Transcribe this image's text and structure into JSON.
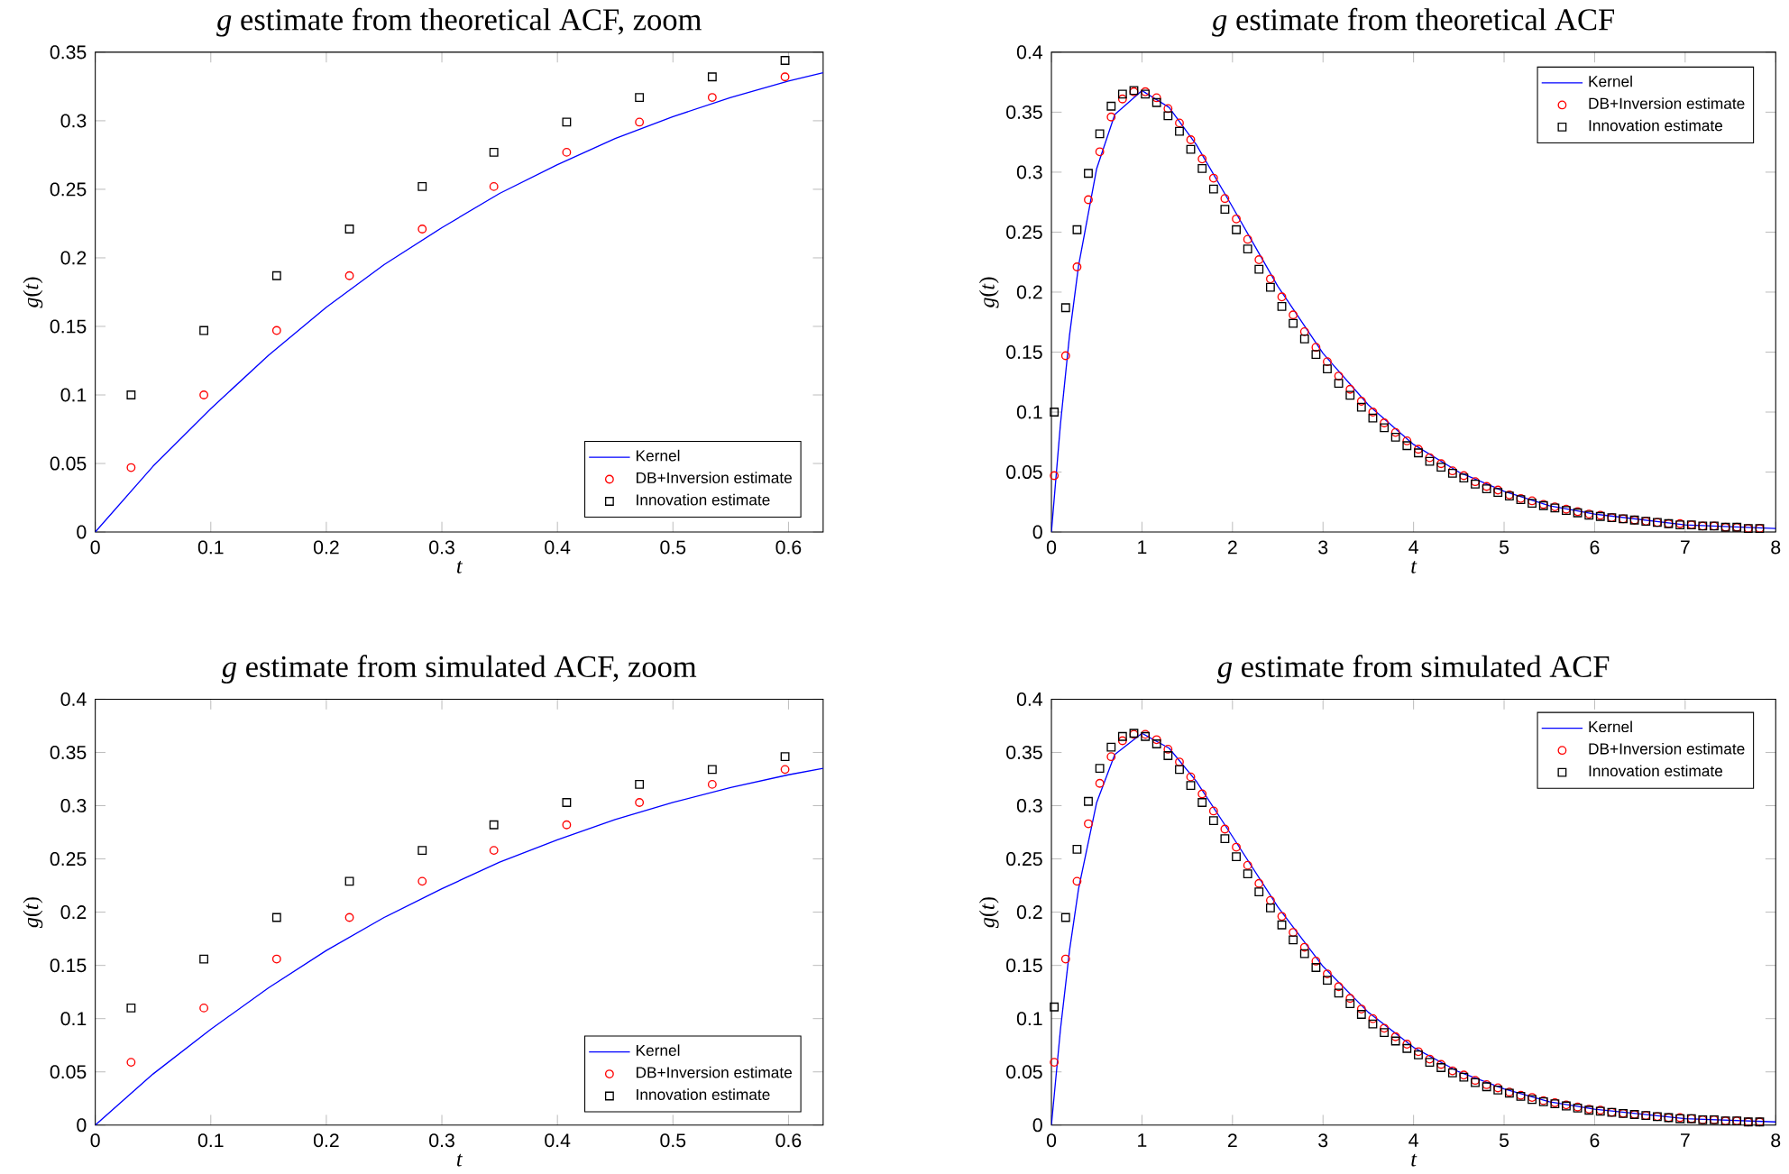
{
  "chart_data": [
    {
      "type": "scatter",
      "title": "*g* estimate from theoretical ACF, zoom",
      "xlabel": "t",
      "ylabel": "*g*(*t*)",
      "xlim": [
        0,
        0.63
      ],
      "ylim": [
        0,
        0.35
      ],
      "xticks": [
        0,
        0.1,
        0.2,
        0.3,
        0.4,
        0.5,
        0.6
      ],
      "yticks": [
        0,
        0.05,
        0.1,
        0.15,
        0.2,
        0.25,
        0.3,
        0.35
      ],
      "legend": "bottom right",
      "x": [
        0.031,
        0.094,
        0.157,
        0.22,
        0.283,
        0.345,
        0.408,
        0.471,
        0.534,
        0.597
      ],
      "series": [
        {
          "name": "Kernel",
          "type": "line",
          "marker": "none",
          "color": "#0000ff",
          "x": [
            0,
            0.05,
            0.1,
            0.15,
            0.2,
            0.25,
            0.3,
            0.35,
            0.4,
            0.45,
            0.5,
            0.55,
            0.6,
            0.63
          ],
          "values": [
            0,
            0.048,
            0.09,
            0.129,
            0.164,
            0.195,
            0.222,
            0.247,
            0.268,
            0.287,
            0.303,
            0.317,
            0.329,
            0.335
          ]
        },
        {
          "name": "DB+Inversion estimate",
          "marker": "circle",
          "color": "#ff0000",
          "values": [
            0.047,
            0.1,
            0.147,
            0.187,
            0.221,
            0.252,
            0.277,
            0.299,
            0.317,
            0.332
          ]
        },
        {
          "name": "Innovation estimate",
          "marker": "square",
          "color": "#000000",
          "values": [
            0.1,
            0.147,
            0.187,
            0.221,
            0.252,
            0.277,
            0.299,
            0.317,
            0.332,
            0.344
          ]
        }
      ]
    },
    {
      "type": "scatter",
      "title": "*g* estimate from theoretical ACF",
      "xlabel": "t",
      "ylabel": "*g*(*t*)",
      "xlim": [
        0,
        8
      ],
      "ylim": [
        0,
        0.4
      ],
      "xticks": [
        0,
        1,
        2,
        3,
        4,
        5,
        6,
        7,
        8
      ],
      "yticks": [
        0,
        0.05,
        0.1,
        0.15,
        0.2,
        0.25,
        0.3,
        0.35,
        0.4
      ],
      "legend": "top right",
      "x": [
        0.031,
        0.157,
        0.283,
        0.408,
        0.534,
        0.66,
        0.785,
        0.911,
        1.037,
        1.162,
        1.288,
        1.414,
        1.539,
        1.665,
        1.791,
        1.916,
        2.042,
        2.168,
        2.293,
        2.419,
        2.545,
        2.67,
        2.796,
        2.922,
        3.047,
        3.173,
        3.299,
        3.424,
        3.55,
        3.676,
        3.801,
        3.927,
        4.053,
        4.178,
        4.304,
        4.43,
        4.555,
        4.681,
        4.807,
        4.932,
        5.058,
        5.184,
        5.309,
        5.435,
        5.561,
        5.686,
        5.812,
        5.938,
        6.063,
        6.189,
        6.315,
        6.44,
        6.566,
        6.692,
        6.817,
        6.943,
        7.069,
        7.194,
        7.32,
        7.446,
        7.571,
        7.697,
        7.823
      ],
      "series": [
        {
          "name": "Kernel",
          "type": "line",
          "marker": "none",
          "color": "#0000ff",
          "x": [
            0,
            0.1,
            0.2,
            0.3,
            0.5,
            0.7,
            1,
            1.3,
            1.6,
            2,
            2.5,
            3,
            3.5,
            4,
            4.5,
            5,
            5.5,
            6,
            7,
            8
          ],
          "values": [
            0,
            0.09,
            0.164,
            0.222,
            0.303,
            0.348,
            0.368,
            0.354,
            0.323,
            0.271,
            0.205,
            0.149,
            0.106,
            0.073,
            0.05,
            0.034,
            0.022,
            0.015,
            0.006,
            0.003
          ]
        },
        {
          "name": "DB+Inversion estimate",
          "marker": "circle",
          "color": "#ff0000",
          "values": [
            0.047,
            0.147,
            0.221,
            0.277,
            0.317,
            0.346,
            0.361,
            0.367,
            0.367,
            0.362,
            0.353,
            0.341,
            0.327,
            0.311,
            0.295,
            0.278,
            0.261,
            0.244,
            0.227,
            0.211,
            0.196,
            0.181,
            0.167,
            0.154,
            0.142,
            0.13,
            0.119,
            0.109,
            0.1,
            0.091,
            0.083,
            0.076,
            0.069,
            0.062,
            0.057,
            0.051,
            0.047,
            0.042,
            0.038,
            0.035,
            0.031,
            0.028,
            0.026,
            0.023,
            0.021,
            0.019,
            0.017,
            0.015,
            0.014,
            0.012,
            0.011,
            0.01,
            0.009,
            0.008,
            0.007,
            0.007,
            0.006,
            0.005,
            0.005,
            0.004,
            0.004,
            0.003,
            0.003
          ]
        },
        {
          "name": "Innovation estimate",
          "marker": "square",
          "color": "#000000",
          "values": [
            0.1,
            0.187,
            0.252,
            0.299,
            0.332,
            0.355,
            0.365,
            0.368,
            0.365,
            0.358,
            0.347,
            0.334,
            0.319,
            0.303,
            0.286,
            0.269,
            0.252,
            0.236,
            0.219,
            0.204,
            0.188,
            0.174,
            0.161,
            0.148,
            0.136,
            0.124,
            0.114,
            0.104,
            0.095,
            0.087,
            0.079,
            0.072,
            0.066,
            0.059,
            0.054,
            0.049,
            0.045,
            0.04,
            0.036,
            0.033,
            0.03,
            0.027,
            0.024,
            0.022,
            0.02,
            0.018,
            0.016,
            0.014,
            0.013,
            0.012,
            0.011,
            0.01,
            0.009,
            0.008,
            0.007,
            0.006,
            0.006,
            0.005,
            0.005,
            0.004,
            0.004,
            0.003,
            0.003
          ]
        }
      ]
    },
    {
      "type": "scatter",
      "title": "*g* estimate from simulated ACF, zoom",
      "xlabel": "t",
      "ylabel": "*g*(*t*)",
      "xlim": [
        0,
        0.63
      ],
      "ylim": [
        0,
        0.4
      ],
      "xticks": [
        0,
        0.1,
        0.2,
        0.3,
        0.4,
        0.5,
        0.6
      ],
      "yticks": [
        0,
        0.05,
        0.1,
        0.15,
        0.2,
        0.25,
        0.3,
        0.35,
        0.4
      ],
      "legend": "bottom right",
      "x": [
        0.031,
        0.094,
        0.157,
        0.22,
        0.283,
        0.345,
        0.408,
        0.471,
        0.534,
        0.597
      ],
      "series": [
        {
          "name": "Kernel",
          "type": "line",
          "marker": "none",
          "color": "#0000ff",
          "x": [
            0,
            0.05,
            0.1,
            0.15,
            0.2,
            0.25,
            0.3,
            0.35,
            0.4,
            0.45,
            0.5,
            0.55,
            0.6,
            0.63
          ],
          "values": [
            0,
            0.048,
            0.09,
            0.129,
            0.164,
            0.195,
            0.222,
            0.247,
            0.268,
            0.287,
            0.303,
            0.317,
            0.329,
            0.335
          ]
        },
        {
          "name": "DB+Inversion estimate",
          "marker": "circle",
          "color": "#ff0000",
          "values": [
            0.059,
            0.11,
            0.156,
            0.195,
            0.229,
            0.258,
            0.282,
            0.303,
            0.32,
            0.334
          ]
        },
        {
          "name": "Innovation estimate",
          "marker": "square",
          "color": "#000000",
          "values": [
            0.11,
            0.156,
            0.195,
            0.229,
            0.258,
            0.282,
            0.303,
            0.32,
            0.334,
            0.346
          ]
        }
      ]
    },
    {
      "type": "scatter",
      "title": "*g* estimate from simulated ACF",
      "xlabel": "t",
      "ylabel": "*g*(*t*)",
      "xlim": [
        0,
        8
      ],
      "ylim": [
        0,
        0.4
      ],
      "xticks": [
        0,
        1,
        2,
        3,
        4,
        5,
        6,
        7,
        8
      ],
      "yticks": [
        0,
        0.05,
        0.1,
        0.15,
        0.2,
        0.25,
        0.3,
        0.35,
        0.4
      ],
      "legend": "top right",
      "x": [
        0.031,
        0.157,
        0.283,
        0.408,
        0.534,
        0.66,
        0.785,
        0.911,
        1.037,
        1.162,
        1.288,
        1.414,
        1.539,
        1.665,
        1.791,
        1.916,
        2.042,
        2.168,
        2.293,
        2.419,
        2.545,
        2.67,
        2.796,
        2.922,
        3.047,
        3.173,
        3.299,
        3.424,
        3.55,
        3.676,
        3.801,
        3.927,
        4.053,
        4.178,
        4.304,
        4.43,
        4.555,
        4.681,
        4.807,
        4.932,
        5.058,
        5.184,
        5.309,
        5.435,
        5.561,
        5.686,
        5.812,
        5.938,
        6.063,
        6.189,
        6.315,
        6.44,
        6.566,
        6.692,
        6.817,
        6.943,
        7.069,
        7.194,
        7.32,
        7.446,
        7.571,
        7.697,
        7.823
      ],
      "series": [
        {
          "name": "Kernel",
          "type": "line",
          "marker": "none",
          "color": "#0000ff",
          "x": [
            0,
            0.1,
            0.2,
            0.3,
            0.5,
            0.7,
            1,
            1.3,
            1.6,
            2,
            2.5,
            3,
            3.5,
            4,
            4.5,
            5,
            5.5,
            6,
            7,
            8
          ],
          "values": [
            0,
            0.09,
            0.164,
            0.222,
            0.303,
            0.348,
            0.368,
            0.354,
            0.323,
            0.271,
            0.205,
            0.149,
            0.106,
            0.073,
            0.05,
            0.034,
            0.022,
            0.015,
            0.006,
            0.003
          ]
        },
        {
          "name": "DB+Inversion estimate",
          "marker": "circle",
          "color": "#ff0000",
          "values": [
            0.059,
            0.156,
            0.229,
            0.283,
            0.321,
            0.346,
            0.361,
            0.367,
            0.367,
            0.362,
            0.353,
            0.341,
            0.327,
            0.311,
            0.295,
            0.278,
            0.261,
            0.244,
            0.227,
            0.211,
            0.196,
            0.181,
            0.167,
            0.154,
            0.142,
            0.13,
            0.119,
            0.109,
            0.1,
            0.091,
            0.083,
            0.076,
            0.069,
            0.062,
            0.057,
            0.051,
            0.047,
            0.042,
            0.038,
            0.035,
            0.031,
            0.028,
            0.026,
            0.023,
            0.021,
            0.019,
            0.017,
            0.015,
            0.014,
            0.012,
            0.011,
            0.01,
            0.009,
            0.008,
            0.007,
            0.007,
            0.006,
            0.005,
            0.005,
            0.004,
            0.004,
            0.003,
            0.003
          ]
        },
        {
          "name": "Innovation estimate",
          "marker": "square",
          "color": "#000000",
          "values": [
            0.111,
            0.195,
            0.259,
            0.304,
            0.335,
            0.355,
            0.365,
            0.368,
            0.365,
            0.358,
            0.347,
            0.334,
            0.319,
            0.303,
            0.286,
            0.269,
            0.252,
            0.236,
            0.219,
            0.204,
            0.188,
            0.174,
            0.161,
            0.148,
            0.136,
            0.124,
            0.114,
            0.104,
            0.095,
            0.087,
            0.079,
            0.072,
            0.066,
            0.059,
            0.054,
            0.049,
            0.045,
            0.04,
            0.036,
            0.033,
            0.03,
            0.027,
            0.024,
            0.022,
            0.02,
            0.018,
            0.016,
            0.014,
            0.013,
            0.012,
            0.011,
            0.01,
            0.009,
            0.008,
            0.007,
            0.006,
            0.006,
            0.005,
            0.005,
            0.004,
            0.004,
            0.003,
            0.003
          ]
        }
      ]
    }
  ]
}
